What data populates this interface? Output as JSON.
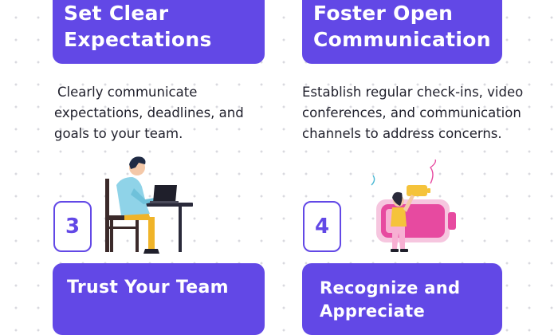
{
  "cards": {
    "top_left": {
      "line1": "Set Clear",
      "line2": "Expectations"
    },
    "top_right": {
      "line1": "Foster Open",
      "line2": "Communication"
    },
    "bottom_left": {
      "line1": "Trust Your Team"
    },
    "bottom_right": {
      "line1": "Recognize and",
      "line2": "Appreciate"
    }
  },
  "descriptions": {
    "left": "Clearly communicate expectations, deadlines, and goals to your team.",
    "right": "Establish regular check-ins, video conferences, and communication channels to address concerns."
  },
  "steps": {
    "left": "3",
    "right": "4"
  },
  "colors": {
    "accent": "#6248e6",
    "text": "#1f1f2b",
    "pink": "#e74aa0",
    "yellow": "#f5c33b",
    "teal": "#4bb8d4"
  },
  "icons": {
    "left_illustration": "person-at-laptop-icon",
    "right_illustration": "woman-charging-battery-icon"
  }
}
